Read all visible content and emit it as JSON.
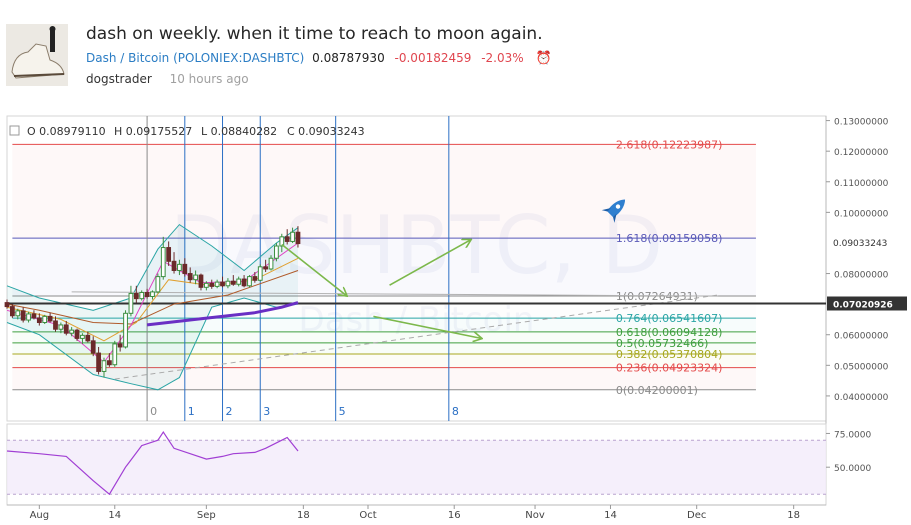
{
  "post": {
    "title": "dash on weekly. when it time to reach to moon again.",
    "symbol_pair": "Dash / Bitcoin",
    "symbol_exchange": "(POLONIEX:DASHBTC)",
    "last_price": "0.08787930",
    "change": "-0.00182459",
    "change_percent": "-2.03%",
    "author": "dogstrader",
    "time_ago": "10 hours ago"
  },
  "colors": {
    "up": "#3b8f3f",
    "down": "#6b2a2a",
    "fib_red": "#e44b4b",
    "fib_blue": "#5a5ab8",
    "fib_teal": "#2aa5a5",
    "fib_green": "#3f9e3f",
    "fib_yellow": "#a7a71f",
    "fib_gray": "#8a8a8a",
    "vline": "#2b6fc4",
    "arrow": "#7cb84b",
    "rsi": "#a13fd4"
  },
  "chart_data": {
    "type": "candlestick",
    "symbol": "DASHBTC",
    "interval": "D",
    "watermark": "DASHBTC, D",
    "watermark_sub": "Dash / Bitcoin",
    "ohlc_legend": {
      "open": "O 0.08979110",
      "high": "H 0.09175527",
      "low": "L 0.08840282",
      "close": "C 0.09033243"
    },
    "y_ticks": [
      "0.13000000",
      "0.12000000",
      "0.11000000",
      "0.10000000",
      "0.08000000",
      "0.06000000",
      "0.05000000",
      "0.04000000"
    ],
    "y_tick_values": [
      0.13,
      0.12,
      0.11,
      0.1,
      0.08,
      0.06,
      0.05,
      0.04
    ],
    "ylim": [
      0.0318,
      0.1315
    ],
    "price_labels": [
      {
        "value": 0.09033243,
        "text": "0.09033243",
        "style": "plain"
      },
      {
        "value": 0.07020926,
        "text": "0.07020926",
        "style": "dark"
      }
    ],
    "x_ticks": [
      "Aug",
      "14",
      "Sep",
      "18",
      "Oct",
      "16",
      "Nov",
      "14",
      "Dec",
      "18"
    ],
    "x_tick_days": [
      0,
      14,
      31,
      49,
      61,
      77,
      92,
      106,
      122,
      140
    ],
    "xlim_days": [
      -6,
      146
    ],
    "fib_levels": [
      {
        "ratio": "2.618",
        "value": 0.12223987,
        "label": "2.618(0.12223987)",
        "color": "#e44b4b"
      },
      {
        "ratio": "1.618",
        "value": 0.09159058,
        "label": "1.618(0.09159058)",
        "color": "#5a5ab8"
      },
      {
        "ratio": "1",
        "value": 0.07264931,
        "label": "1(0.07264931)",
        "color": "#8a8a8a"
      },
      {
        "ratio": "0.764",
        "value": 0.06541607,
        "label": "0.764(0.06541607)",
        "color": "#2aa5a5"
      },
      {
        "ratio": "0.618",
        "value": 0.06094128,
        "label": "0.618(0.06094128)",
        "color": "#3f9e3f"
      },
      {
        "ratio": "0.5",
        "value": 0.05732466,
        "label": "0.5(0.05732466)",
        "color": "#3f9e3f"
      },
      {
        "ratio": "0.382",
        "value": 0.05370804,
        "label": "0.382(0.05370804)",
        "color": "#a7a71f"
      },
      {
        "ratio": "0.236",
        "value": 0.04923324,
        "label": "0.236(0.04923324)",
        "color": "#e44b4b"
      },
      {
        "ratio": "0",
        "value": 0.042,
        "label": "0(0.04200001)",
        "color": "#8a8a8a"
      }
    ],
    "fib_time_zones": [
      {
        "label": "0",
        "day": 20
      },
      {
        "label": "1",
        "day": 27
      },
      {
        "label": "2",
        "day": 34
      },
      {
        "label": "3",
        "day": 41
      },
      {
        "label": "5",
        "day": 55
      },
      {
        "label": "8",
        "day": 76
      }
    ],
    "candles": [
      {
        "day": -6,
        "o": 0.0705,
        "h": 0.0715,
        "l": 0.0685,
        "c": 0.0692
      },
      {
        "day": -5,
        "o": 0.0692,
        "h": 0.07,
        "l": 0.0655,
        "c": 0.0662
      },
      {
        "day": -4,
        "o": 0.0662,
        "h": 0.0685,
        "l": 0.065,
        "c": 0.0678
      },
      {
        "day": -3,
        "o": 0.0678,
        "h": 0.069,
        "l": 0.064,
        "c": 0.0648
      },
      {
        "day": -2,
        "o": 0.0648,
        "h": 0.0675,
        "l": 0.064,
        "c": 0.0668
      },
      {
        "day": -1,
        "o": 0.0668,
        "h": 0.068,
        "l": 0.065,
        "c": 0.0655
      },
      {
        "day": 0,
        "o": 0.0655,
        "h": 0.067,
        "l": 0.063,
        "c": 0.064
      },
      {
        "day": 1,
        "o": 0.064,
        "h": 0.0665,
        "l": 0.0635,
        "c": 0.066
      },
      {
        "day": 2,
        "o": 0.066,
        "h": 0.0672,
        "l": 0.064,
        "c": 0.0645
      },
      {
        "day": 3,
        "o": 0.0645,
        "h": 0.066,
        "l": 0.061,
        "c": 0.0618
      },
      {
        "day": 4,
        "o": 0.0618,
        "h": 0.064,
        "l": 0.0605,
        "c": 0.0632
      },
      {
        "day": 5,
        "o": 0.0632,
        "h": 0.0645,
        "l": 0.0598,
        "c": 0.0605
      },
      {
        "day": 6,
        "o": 0.0605,
        "h": 0.0625,
        "l": 0.0595,
        "c": 0.0615
      },
      {
        "day": 7,
        "o": 0.0615,
        "h": 0.062,
        "l": 0.058,
        "c": 0.0588
      },
      {
        "day": 8,
        "o": 0.0588,
        "h": 0.0605,
        "l": 0.057,
        "c": 0.0598
      },
      {
        "day": 9,
        "o": 0.0598,
        "h": 0.061,
        "l": 0.0575,
        "c": 0.058
      },
      {
        "day": 10,
        "o": 0.058,
        "h": 0.0595,
        "l": 0.053,
        "c": 0.054
      },
      {
        "day": 11,
        "o": 0.054,
        "h": 0.056,
        "l": 0.047,
        "c": 0.048
      },
      {
        "day": 12,
        "o": 0.048,
        "h": 0.0525,
        "l": 0.046,
        "c": 0.0515
      },
      {
        "day": 13,
        "o": 0.0515,
        "h": 0.054,
        "l": 0.0495,
        "c": 0.0502
      },
      {
        "day": 14,
        "o": 0.0502,
        "h": 0.058,
        "l": 0.0495,
        "c": 0.057
      },
      {
        "day": 15,
        "o": 0.057,
        "h": 0.06,
        "l": 0.0545,
        "c": 0.056
      },
      {
        "day": 16,
        "o": 0.056,
        "h": 0.068,
        "l": 0.0555,
        "c": 0.067
      },
      {
        "day": 17,
        "o": 0.067,
        "h": 0.076,
        "l": 0.066,
        "c": 0.0735
      },
      {
        "day": 18,
        "o": 0.0735,
        "h": 0.076,
        "l": 0.0705,
        "c": 0.0718
      },
      {
        "day": 19,
        "o": 0.0718,
        "h": 0.0745,
        "l": 0.0712,
        "c": 0.0738
      },
      {
        "day": 20,
        "o": 0.0738,
        "h": 0.075,
        "l": 0.0718,
        "c": 0.0725
      },
      {
        "day": 21,
        "o": 0.0725,
        "h": 0.0745,
        "l": 0.0715,
        "c": 0.074
      },
      {
        "day": 22,
        "o": 0.074,
        "h": 0.08,
        "l": 0.0735,
        "c": 0.079
      },
      {
        "day": 23,
        "o": 0.079,
        "h": 0.092,
        "l": 0.078,
        "c": 0.0885
      },
      {
        "day": 24,
        "o": 0.0885,
        "h": 0.0905,
        "l": 0.0825,
        "c": 0.084
      },
      {
        "day": 25,
        "o": 0.084,
        "h": 0.087,
        "l": 0.08,
        "c": 0.081
      },
      {
        "day": 26,
        "o": 0.081,
        "h": 0.0845,
        "l": 0.0795,
        "c": 0.083
      },
      {
        "day": 27,
        "o": 0.083,
        "h": 0.085,
        "l": 0.079,
        "c": 0.08
      },
      {
        "day": 28,
        "o": 0.08,
        "h": 0.082,
        "l": 0.077,
        "c": 0.078
      },
      {
        "day": 29,
        "o": 0.078,
        "h": 0.081,
        "l": 0.0765,
        "c": 0.0795
      },
      {
        "day": 30,
        "o": 0.0795,
        "h": 0.08,
        "l": 0.0745,
        "c": 0.0755
      },
      {
        "day": 31,
        "o": 0.0755,
        "h": 0.0775,
        "l": 0.0745,
        "c": 0.0768
      },
      {
        "day": 32,
        "o": 0.0768,
        "h": 0.078,
        "l": 0.075,
        "c": 0.0758
      },
      {
        "day": 33,
        "o": 0.0758,
        "h": 0.078,
        "l": 0.0752,
        "c": 0.0772
      },
      {
        "day": 34,
        "o": 0.0772,
        "h": 0.079,
        "l": 0.0755,
        "c": 0.076
      },
      {
        "day": 35,
        "o": 0.076,
        "h": 0.0785,
        "l": 0.0752,
        "c": 0.0775
      },
      {
        "day": 36,
        "o": 0.0775,
        "h": 0.0795,
        "l": 0.076,
        "c": 0.0765
      },
      {
        "day": 37,
        "o": 0.0765,
        "h": 0.079,
        "l": 0.0758,
        "c": 0.0782
      },
      {
        "day": 38,
        "o": 0.0782,
        "h": 0.0795,
        "l": 0.0755,
        "c": 0.076
      },
      {
        "day": 39,
        "o": 0.076,
        "h": 0.0795,
        "l": 0.0755,
        "c": 0.079
      },
      {
        "day": 40,
        "o": 0.079,
        "h": 0.0805,
        "l": 0.077,
        "c": 0.0778
      },
      {
        "day": 41,
        "o": 0.0778,
        "h": 0.083,
        "l": 0.0775,
        "c": 0.0822
      },
      {
        "day": 42,
        "o": 0.0822,
        "h": 0.0845,
        "l": 0.0805,
        "c": 0.0815
      },
      {
        "day": 43,
        "o": 0.0815,
        "h": 0.086,
        "l": 0.081,
        "c": 0.085
      },
      {
        "day": 44,
        "o": 0.085,
        "h": 0.09,
        "l": 0.084,
        "c": 0.089
      },
      {
        "day": 45,
        "o": 0.089,
        "h": 0.093,
        "l": 0.087,
        "c": 0.092
      },
      {
        "day": 46,
        "o": 0.092,
        "h": 0.0945,
        "l": 0.0895,
        "c": 0.0905
      },
      {
        "day": 47,
        "o": 0.0905,
        "h": 0.095,
        "l": 0.09,
        "c": 0.0935
      },
      {
        "day": 48,
        "o": 0.0935,
        "h": 0.0955,
        "l": 0.0885,
        "c": 0.0898
      }
    ],
    "moving_averages": [
      {
        "name": "ma_purple",
        "color": "#6a2fc4",
        "width": 3,
        "points": [
          [
            20,
            0.0632
          ],
          [
            30,
            0.0652
          ],
          [
            40,
            0.0672
          ],
          [
            45,
            0.069
          ],
          [
            48,
            0.0705
          ]
        ]
      },
      {
        "name": "ma_brown",
        "color": "#b05a2a",
        "width": 1,
        "points": [
          [
            -6,
            0.07
          ],
          [
            0,
            0.068
          ],
          [
            10,
            0.064
          ],
          [
            17,
            0.0635
          ],
          [
            25,
            0.07
          ],
          [
            35,
            0.073
          ],
          [
            48,
            0.081
          ]
        ]
      },
      {
        "name": "ma_orange",
        "color": "#e0a030",
        "width": 1,
        "points": [
          [
            -6,
            0.069
          ],
          [
            4,
            0.065
          ],
          [
            12,
            0.058
          ],
          [
            18,
            0.064
          ],
          [
            24,
            0.078
          ],
          [
            32,
            0.076
          ],
          [
            40,
            0.078
          ],
          [
            48,
            0.085
          ]
        ]
      },
      {
        "name": "ma_pink",
        "color": "#e044c4",
        "width": 1,
        "points": [
          [
            -6,
            0.068
          ],
          [
            4,
            0.063
          ],
          [
            12,
            0.051
          ],
          [
            17,
            0.063
          ],
          [
            23,
            0.084
          ],
          [
            30,
            0.077
          ],
          [
            38,
            0.0775
          ],
          [
            48,
            0.09
          ]
        ]
      }
    ],
    "bollinger": {
      "upper": [
        [
          -6,
          0.076
        ],
        [
          0,
          0.072
        ],
        [
          10,
          0.068
        ],
        [
          17,
          0.072
        ],
        [
          22,
          0.088
        ],
        [
          26,
          0.096
        ],
        [
          32,
          0.089
        ],
        [
          38,
          0.081
        ],
        [
          44,
          0.09
        ],
        [
          48,
          0.095
        ]
      ],
      "lower": [
        [
          -6,
          0.064
        ],
        [
          0,
          0.06
        ],
        [
          10,
          0.047
        ],
        [
          17,
          0.044
        ],
        [
          22,
          0.042
        ],
        [
          26,
          0.046
        ],
        [
          32,
          0.069
        ],
        [
          38,
          0.072
        ],
        [
          44,
          0.069
        ],
        [
          48,
          0.07
        ]
      ],
      "color": "#2aa5a5"
    },
    "trendline_dashed": [
      [
        14,
        0.0455
      ],
      [
        126,
        0.073
      ]
    ],
    "trendline_solid_gray": [
      [
        6,
        0.074
      ],
      [
        126,
        0.0726
      ]
    ],
    "thick_line_value": 0.07020926,
    "arrows": [
      {
        "from": [
          45,
          0.0895
        ],
        "to": [
          57,
          0.0728
        ]
      },
      {
        "from": [
          65,
          0.0762
        ],
        "to": [
          80,
          0.091
        ]
      },
      {
        "from": [
          62,
          0.066
        ],
        "to": [
          82,
          0.0588
        ]
      }
    ],
    "rocket": {
      "day": 107,
      "value": 0.1012
    },
    "rsi": {
      "ylim": [
        22,
        82
      ],
      "ticks": [
        "75.0000",
        "50.0000"
      ],
      "tick_values": [
        75,
        50
      ],
      "band": [
        30,
        70
      ],
      "points": [
        [
          -6,
          62
        ],
        [
          0,
          60
        ],
        [
          5,
          58
        ],
        [
          10,
          40
        ],
        [
          13,
          30
        ],
        [
          16,
          50
        ],
        [
          19,
          66
        ],
        [
          22,
          70
        ],
        [
          23,
          76
        ],
        [
          25,
          64
        ],
        [
          28,
          60
        ],
        [
          31,
          56
        ],
        [
          34,
          58
        ],
        [
          36,
          60
        ],
        [
          40,
          61
        ],
        [
          42,
          64
        ],
        [
          45,
          70
        ],
        [
          46,
          72
        ],
        [
          48,
          62
        ]
      ]
    }
  }
}
